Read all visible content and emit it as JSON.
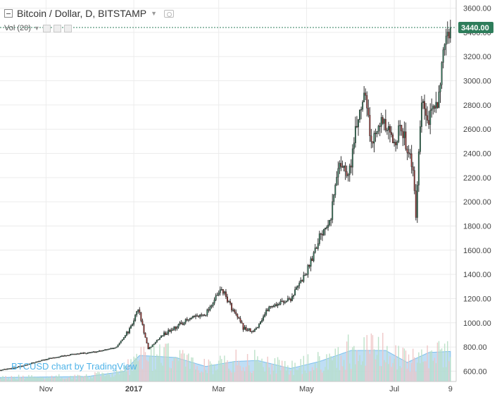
{
  "legend": {
    "title": "Bitcoin / Dollar, D, BITSTAMP",
    "volume_label": "Vol (20)"
  },
  "watermark": "BTCUSD chart by TradingView",
  "last_price_label": "3440.00",
  "colors": {
    "up": "#2e7d5b",
    "down": "#a0302c",
    "wick": "#333333",
    "volume_up": "#b7dfc4",
    "volume_down": "#eec3c3",
    "volume_ma_fill": "#a9d3f1",
    "volume_ma_line": "#7fc0ec",
    "price_tag": "#2e7d5b",
    "watermark": "#4fb3e8"
  },
  "chart_data": {
    "type": "candlestick",
    "symbol": "BTCUSD",
    "exchange": "BITSTAMP",
    "interval": "D",
    "y_ticks": [
      600,
      800,
      1000,
      1200,
      1400,
      1600,
      1800,
      2000,
      2200,
      2400,
      2600,
      2800,
      3000,
      3200,
      3400,
      3600
    ],
    "ylim": [
      480,
      3650
    ],
    "x_ticks": [
      "Nov",
      "2017",
      "Mar",
      "May",
      "Jul",
      "9"
    ],
    "last_price": 3440,
    "grid": true,
    "price_path_points": [
      {
        "date": "2016-09-30",
        "close": 609
      },
      {
        "date": "2016-10-15",
        "close": 640
      },
      {
        "date": "2016-10-26",
        "close": 680
      },
      {
        "date": "2016-11-05",
        "close": 710
      },
      {
        "date": "2016-11-20",
        "close": 740
      },
      {
        "date": "2016-12-05",
        "close": 760
      },
      {
        "date": "2016-12-20",
        "close": 800
      },
      {
        "date": "2016-12-30",
        "close": 960
      },
      {
        "date": "2017-01-04",
        "close": 1120
      },
      {
        "date": "2017-01-11",
        "close": 780
      },
      {
        "date": "2017-01-20",
        "close": 890
      },
      {
        "date": "2017-02-05",
        "close": 1010
      },
      {
        "date": "2017-02-20",
        "close": 1080
      },
      {
        "date": "2017-03-03",
        "close": 1280
      },
      {
        "date": "2017-03-11",
        "close": 1100
      },
      {
        "date": "2017-03-18",
        "close": 960
      },
      {
        "date": "2017-03-25",
        "close": 920
      },
      {
        "date": "2017-04-05",
        "close": 1130
      },
      {
        "date": "2017-04-20",
        "close": 1200
      },
      {
        "date": "2017-05-01",
        "close": 1420
      },
      {
        "date": "2017-05-10",
        "close": 1720
      },
      {
        "date": "2017-05-18",
        "close": 1900
      },
      {
        "date": "2017-05-24",
        "close": 2350
      },
      {
        "date": "2017-05-30",
        "close": 2200
      },
      {
        "date": "2017-06-06",
        "close": 2700
      },
      {
        "date": "2017-06-11",
        "close": 2960
      },
      {
        "date": "2017-06-15",
        "close": 2450
      },
      {
        "date": "2017-06-20",
        "close": 2700
      },
      {
        "date": "2017-06-30",
        "close": 2500
      },
      {
        "date": "2017-07-06",
        "close": 2600
      },
      {
        "date": "2017-07-13",
        "close": 2350
      },
      {
        "date": "2017-07-16",
        "close": 1900
      },
      {
        "date": "2017-07-20",
        "close": 2800
      },
      {
        "date": "2017-07-25",
        "close": 2650
      },
      {
        "date": "2017-07-31",
        "close": 2850
      },
      {
        "date": "2017-08-04",
        "close": 3180
      },
      {
        "date": "2017-08-09",
        "close": 3440
      }
    ],
    "volume": {
      "label": "Vol (20)",
      "ma_path_points": [
        {
          "date": "2016-09-30",
          "ma": 0.08
        },
        {
          "date": "2016-11-30",
          "ma": 0.1
        },
        {
          "date": "2016-12-25",
          "ma": 0.2
        },
        {
          "date": "2017-01-05",
          "ma": 0.52
        },
        {
          "date": "2017-01-30",
          "ma": 0.48
        },
        {
          "date": "2017-02-20",
          "ma": 0.3
        },
        {
          "date": "2017-03-12",
          "ma": 0.4
        },
        {
          "date": "2017-03-28",
          "ma": 0.42
        },
        {
          "date": "2017-04-20",
          "ma": 0.26
        },
        {
          "date": "2017-05-10",
          "ma": 0.4
        },
        {
          "date": "2017-06-01",
          "ma": 0.62
        },
        {
          "date": "2017-06-25",
          "ma": 0.62
        },
        {
          "date": "2017-07-10",
          "ma": 0.38
        },
        {
          "date": "2017-07-25",
          "ma": 0.58
        },
        {
          "date": "2017-08-09",
          "ma": 0.6
        }
      ]
    }
  }
}
